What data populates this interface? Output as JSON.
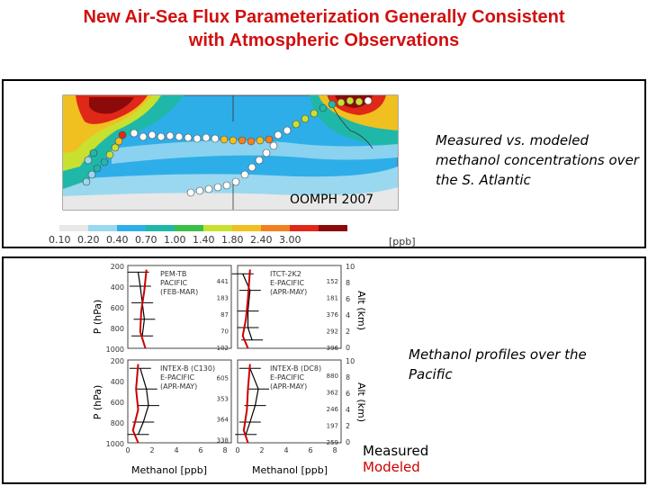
{
  "title": {
    "line1": "New Air-Sea Flux Parameterization Generally Consistent",
    "line2": "with Atmospheric Observations"
  },
  "top_panel": {
    "map_label": "OOMPH 2007",
    "caption": "Measured vs. modeled methanol concentrations over the S. Atlantic",
    "colorbar": {
      "ticks": [
        "0.10",
        "0.20",
        "0.40",
        "0.70",
        "1.00",
        "1.40",
        "1.80",
        "2.40",
        "3.00"
      ],
      "unit": "[ppb]",
      "colors": [
        "#e8e8e8",
        "#9ad8f0",
        "#2eaee8",
        "#1fb8a8",
        "#38c048",
        "#c8e030",
        "#f0c020",
        "#f08020",
        "#e02818",
        "#8c0a0a"
      ]
    }
  },
  "bottom_panel": {
    "caption": "Methanol profiles over the Pacific",
    "legend": {
      "measured": "Measured",
      "modeled": "Modeled"
    },
    "y_left_label": "P (hPa)",
    "y_right_label": "Alt (km)",
    "x_label": "Methanol [ppb]",
    "p_ticks": [
      "200",
      "400",
      "600",
      "800",
      "1000"
    ],
    "alt_ticks": [
      "10",
      "8",
      "6",
      "4",
      "2",
      "0"
    ],
    "x_ticks": [
      "0",
      "2",
      "4",
      "6",
      "8"
    ],
    "subplots": [
      {
        "id": "pem-tb",
        "name": "PEM-TB",
        "region": "PACIFIC",
        "period": "(FEB-MAR)",
        "counts": [
          "441",
          "183",
          "87",
          "70",
          "102"
        ]
      },
      {
        "id": "itct-2k2",
        "name": "ITCT-2K2",
        "region": "E-PACIFIC",
        "period": "(APR-MAY)",
        "counts": [
          "152",
          "181",
          "376",
          "292",
          "396"
        ]
      },
      {
        "id": "intex-b-c130",
        "name": "INTEX-B (C130)",
        "region": "E-PACIFIC",
        "period": "(APR-MAY)",
        "counts": [
          "605",
          "353",
          "364",
          "338"
        ]
      },
      {
        "id": "intex-b-dc8",
        "name": "INTEX-B (DC8)",
        "region": "E-PACIFIC",
        "period": "(APR-MAY)",
        "counts": [
          "880",
          "362",
          "246",
          "197",
          "259"
        ]
      }
    ],
    "colors": {
      "measured": "#000000",
      "modeled": "#cc0000"
    }
  }
}
